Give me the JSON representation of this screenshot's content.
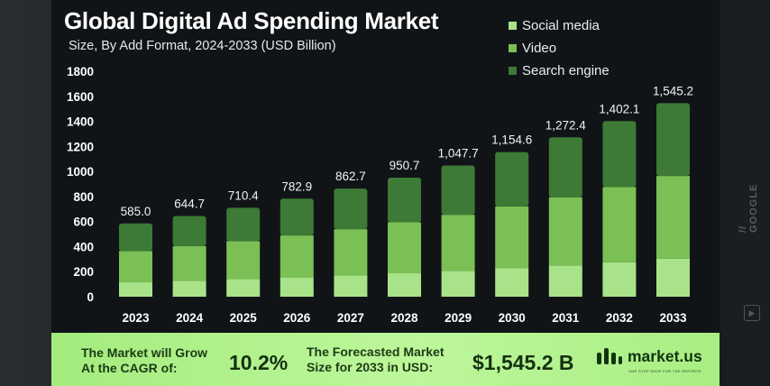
{
  "chart_data": {
    "type": "bar",
    "stacked": true,
    "title": "Global Digital Ad Spending Market",
    "subtitle": "Size, By Add Format, 2024-2033 (USD Billion)",
    "categories": [
      "2023",
      "2024",
      "2025",
      "2026",
      "2027",
      "2028",
      "2029",
      "2030",
      "2031",
      "2032",
      "2033"
    ],
    "series": [
      {
        "name": "Social media",
        "color": "#a8e38a",
        "values": [
          115,
          127,
          140,
          154,
          170,
          187,
          206,
          227,
          250,
          275,
          303
        ]
      },
      {
        "name": "Video",
        "color": "#7bc054",
        "values": [
          250,
          276,
          304,
          335,
          369,
          407,
          448,
          494,
          544,
          600,
          661
        ]
      },
      {
        "name": "Search engine",
        "color": "#3c7a35",
        "values": [
          220,
          241.7,
          266.4,
          293.9,
          323.7,
          356.7,
          393.7,
          433.6,
          478.4,
          527.1,
          581.2
        ]
      }
    ],
    "totals": [
      "585.0",
      "644.7",
      "710.4",
      "782.9",
      "862.7",
      "950.7",
      "1,047.7",
      "1,154.6",
      "1,272.4",
      "1,402.1",
      "1,545.2"
    ],
    "yticks": [
      "0",
      "200",
      "400",
      "600",
      "800",
      "1000",
      "1200",
      "1400",
      "1600",
      "1800"
    ],
    "ylim": [
      0,
      1800
    ],
    "xlabel": "",
    "ylabel": "",
    "legend_position": "top-right",
    "grid": false
  },
  "footer": {
    "grow_line1": "The Market will Grow",
    "grow_line2": "At the CAGR of:",
    "cagr": "10.2%",
    "forecast_line1": "The Forecasted Market",
    "forecast_line2": "Size for 2033 in USD:",
    "forecast_value": "$1,545.2 B",
    "logo_text": "market.us",
    "logo_tagline": "ONE STOP SHOP FOR THE REPORTS"
  },
  "watermark": {
    "text": "// GOOGLE",
    "icon": "play-icon",
    "icon_glyph": "▶"
  }
}
